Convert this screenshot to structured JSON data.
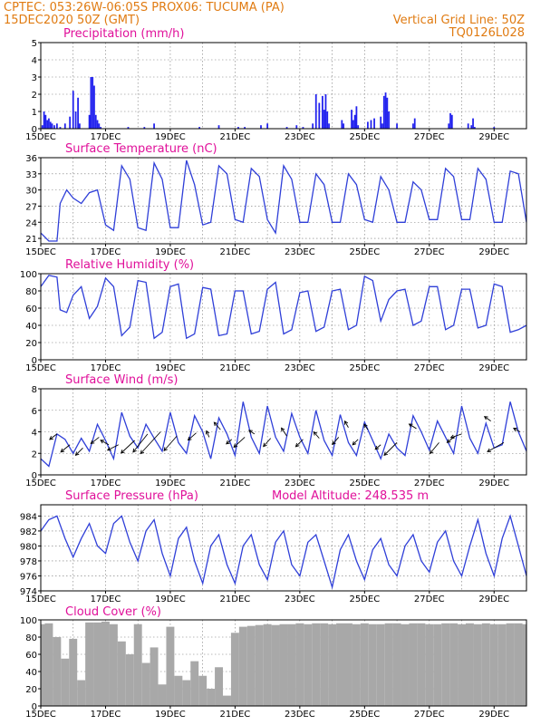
{
  "header": {
    "line1": "CPTEC:   053:26W-06:05S   PROX06: TUCUMA (PA)",
    "line2": "15DEC2020 50Z (GMT)",
    "right1": "Vertical Grid Line: 50Z",
    "right2": "TQ0126L028"
  },
  "colors": {
    "line": "#2f3fd8",
    "bars": "#2222ee",
    "cloud": "#a8a8a8",
    "title": "#e0109a",
    "header": "#e07b12"
  },
  "chart_data": [
    {
      "type": "bar",
      "title": "Precipitation (mm/h)",
      "ylim": [
        0,
        5
      ],
      "yticks": [
        "0",
        "1",
        "2",
        "3",
        "4",
        "5"
      ],
      "xticks": [
        "15DEC",
        "17DEC",
        "19DEC",
        "21DEC",
        "23DEC",
        "25DEC",
        "27DEC",
        "29DEC"
      ],
      "xlim_days": [
        0,
        15
      ],
      "x_days": [
        0.05,
        0.1,
        0.15,
        0.2,
        0.25,
        0.3,
        0.35,
        0.42,
        0.5,
        0.6,
        0.75,
        0.9,
        1.0,
        1.08,
        1.15,
        1.2,
        1.5,
        1.55,
        1.6,
        1.65,
        1.7,
        1.75,
        1.8,
        1.85,
        2.7,
        3.2,
        3.5,
        4.9,
        5.5,
        6.1,
        6.3,
        6.8,
        7.0,
        7.6,
        7.9,
        8.1,
        8.4,
        8.5,
        8.6,
        8.7,
        8.75,
        8.8,
        8.85,
        8.9,
        9.3,
        9.35,
        9.6,
        9.65,
        9.7,
        9.75,
        9.8,
        10.1,
        10.2,
        10.3,
        10.5,
        10.55,
        10.6,
        10.65,
        10.7,
        10.75,
        11.0,
        11.5,
        11.55,
        12.6,
        12.65,
        12.7,
        13.2,
        13.3,
        13.35,
        13.4,
        14.0
      ],
      "values": [
        0.2,
        1.0,
        0.8,
        0.5,
        0.6,
        0.4,
        0.3,
        0.2,
        0.3,
        0.1,
        0.3,
        0.7,
        2.2,
        1.0,
        1.8,
        0.3,
        0.8,
        3.0,
        3.0,
        2.5,
        0.8,
        0.5,
        0.3,
        0.1,
        0.1,
        0.1,
        0.3,
        0.1,
        0.2,
        0.1,
        0.1,
        0.2,
        0.3,
        0.1,
        0.2,
        0.1,
        0.3,
        2.0,
        1.5,
        1.9,
        1.1,
        2.0,
        1.0,
        0.3,
        0.5,
        0.3,
        1.1,
        0.5,
        0.8,
        1.3,
        0.2,
        0.4,
        0.5,
        0.6,
        0.7,
        0.3,
        1.9,
        2.1,
        1.8,
        1.0,
        0.3,
        0.3,
        0.6,
        0.3,
        0.9,
        0.8,
        0.3,
        0.2,
        0.6,
        0.1,
        0.1
      ]
    },
    {
      "type": "line",
      "title": "Surface Temperature (nC)",
      "ylim": [
        20,
        36
      ],
      "yticks": [
        "21",
        "24",
        "27",
        "30",
        "33",
        "36"
      ],
      "ytick_values": [
        21,
        24,
        27,
        30,
        33,
        36
      ],
      "xticks": [
        "15DEC",
        "17DEC",
        "19DEC",
        "21DEC",
        "23DEC",
        "25DEC",
        "27DEC",
        "29DEC"
      ],
      "xlim_days": [
        0,
        15
      ],
      "x_days": [
        0,
        0.25,
        0.5,
        0.6,
        0.8,
        1.0,
        1.25,
        1.5,
        1.75,
        2.0,
        2.25,
        2.5,
        2.75,
        3.0,
        3.25,
        3.5,
        3.75,
        4.0,
        4.25,
        4.5,
        4.75,
        5.0,
        5.25,
        5.5,
        5.75,
        6.0,
        6.25,
        6.5,
        6.75,
        7.0,
        7.25,
        7.5,
        7.75,
        8.0,
        8.25,
        8.5,
        8.75,
        9.0,
        9.25,
        9.5,
        9.75,
        10.0,
        10.25,
        10.5,
        10.75,
        11.0,
        11.25,
        11.5,
        11.75,
        12.0,
        12.25,
        12.5,
        12.75,
        13.0,
        13.25,
        13.5,
        13.75,
        14.0,
        14.25,
        14.5,
        14.75,
        15.0
      ],
      "values": [
        22,
        20.5,
        20.5,
        27.5,
        30,
        28.5,
        27.5,
        29.5,
        30,
        23.5,
        22.5,
        34.5,
        32,
        23,
        22.5,
        35,
        32,
        23,
        23,
        35.5,
        31,
        23.5,
        24,
        34.5,
        33,
        24.5,
        24,
        34,
        32.5,
        24.5,
        22,
        34.5,
        32,
        24,
        24,
        33,
        31,
        24,
        24,
        33,
        31,
        24.5,
        24,
        32.5,
        30,
        24,
        24,
        31.5,
        30,
        24.5,
        24.5,
        34,
        32.5,
        24.5,
        24.5,
        34,
        32,
        24,
        24,
        33.5,
        33,
        24
      ]
    },
    {
      "type": "line",
      "title": "Relative Humidity (%)",
      "ylim": [
        0,
        100
      ],
      "yticks": [
        "0",
        "20",
        "40",
        "60",
        "80",
        "100"
      ],
      "ytick_values": [
        0,
        20,
        40,
        60,
        80,
        100
      ],
      "xticks": [
        "15DEC",
        "17DEC",
        "19DEC",
        "21DEC",
        "23DEC",
        "25DEC",
        "27DEC",
        "29DEC"
      ],
      "xlim_days": [
        0,
        15
      ],
      "x_days": [
        0,
        0.25,
        0.5,
        0.6,
        0.8,
        1.0,
        1.25,
        1.5,
        1.75,
        2.0,
        2.25,
        2.5,
        2.75,
        3.0,
        3.25,
        3.5,
        3.75,
        4.0,
        4.25,
        4.5,
        4.75,
        5.0,
        5.25,
        5.5,
        5.75,
        6.0,
        6.25,
        6.5,
        6.75,
        7.0,
        7.25,
        7.5,
        7.75,
        8.0,
        8.25,
        8.5,
        8.75,
        9.0,
        9.25,
        9.5,
        9.75,
        10.0,
        10.25,
        10.5,
        10.75,
        11.0,
        11.25,
        11.5,
        11.75,
        12.0,
        12.25,
        12.5,
        12.75,
        13.0,
        13.25,
        13.5,
        13.75,
        14.0,
        14.25,
        14.5,
        14.75,
        15.0
      ],
      "values": [
        85,
        98,
        96,
        58,
        55,
        75,
        85,
        48,
        62,
        95,
        85,
        28,
        38,
        92,
        90,
        25,
        32,
        85,
        88,
        25,
        30,
        84,
        82,
        28,
        30,
        80,
        80,
        30,
        33,
        82,
        90,
        30,
        35,
        78,
        80,
        33,
        38,
        80,
        82,
        35,
        40,
        97,
        92,
        45,
        70,
        80,
        82,
        40,
        45,
        85,
        85,
        35,
        40,
        82,
        82,
        37,
        40,
        88,
        85,
        32,
        35,
        40
      ]
    },
    {
      "type": "line",
      "title": "Surface Wind (m/s)",
      "ylim": [
        0,
        8
      ],
      "yticks": [
        "0",
        "2",
        "4",
        "6",
        "8"
      ],
      "ytick_values": [
        0,
        2,
        4,
        6,
        8
      ],
      "xticks": [
        "15DEC",
        "17DEC",
        "19DEC",
        "21DEC",
        "23DEC",
        "25DEC",
        "27DEC",
        "29DEC"
      ],
      "xlim_days": [
        0,
        15
      ],
      "x_days": [
        0,
        0.25,
        0.5,
        0.75,
        1.0,
        1.25,
        1.5,
        1.75,
        2.0,
        2.25,
        2.5,
        2.75,
        3.0,
        3.25,
        3.5,
        3.75,
        4.0,
        4.25,
        4.5,
        4.75,
        5.0,
        5.25,
        5.5,
        5.75,
        6.0,
        6.25,
        6.5,
        6.75,
        7.0,
        7.25,
        7.5,
        7.75,
        8.0,
        8.25,
        8.5,
        8.75,
        9.0,
        9.25,
        9.5,
        9.75,
        10.0,
        10.25,
        10.5,
        10.75,
        11.0,
        11.25,
        11.5,
        11.75,
        12.0,
        12.25,
        12.5,
        12.75,
        13.0,
        13.25,
        13.5,
        13.75,
        14.0,
        14.25,
        14.5,
        14.75,
        15.0
      ],
      "values": [
        1.5,
        0.8,
        3.8,
        3.3,
        2.0,
        3.4,
        2.2,
        4.7,
        3.2,
        1.5,
        5.8,
        3.6,
        2.5,
        4.7,
        3.4,
        2.2,
        5.8,
        3.0,
        2.0,
        5.5,
        4.0,
        1.5,
        5.3,
        3.8,
        1.8,
        6.8,
        3.5,
        2.0,
        6.4,
        3.5,
        2.2,
        5.7,
        3.5,
        2.0,
        6.0,
        3.2,
        1.8,
        5.6,
        3.0,
        1.8,
        4.9,
        3.2,
        1.5,
        3.8,
        2.5,
        1.8,
        5.5,
        4.0,
        2.3,
        5.0,
        3.5,
        2.0,
        6.4,
        3.4,
        2.0,
        4.8,
        2.5,
        2.8,
        6.8,
        4.0,
        2.2
      ],
      "vectors": [
        {
          "x": 0.5,
          "y": 3.8,
          "dx": -8,
          "dy": 6
        },
        {
          "x": 0.9,
          "y": 2.8,
          "dx": -10,
          "dy": 8
        },
        {
          "x": 1.3,
          "y": 2.5,
          "dx": -8,
          "dy": 8
        },
        {
          "x": 1.8,
          "y": 3.5,
          "dx": -9,
          "dy": 7
        },
        {
          "x": 2.1,
          "y": 2.8,
          "dx": -9,
          "dy": -5
        },
        {
          "x": 2.4,
          "y": 2.8,
          "dx": -12,
          "dy": 6
        },
        {
          "x": 2.9,
          "y": 3.2,
          "dx": -15,
          "dy": 14
        },
        {
          "x": 3.3,
          "y": 3.8,
          "dx": -16,
          "dy": 20
        },
        {
          "x": 3.7,
          "y": 4.0,
          "dx": -22,
          "dy": 24
        },
        {
          "x": 4.2,
          "y": 3.6,
          "dx": -14,
          "dy": 16
        },
        {
          "x": 4.8,
          "y": 3.9,
          "dx": -9,
          "dy": 8
        },
        {
          "x": 5.2,
          "y": 3.5,
          "dx": -3,
          "dy": -7
        },
        {
          "x": 5.55,
          "y": 4.2,
          "dx": -7,
          "dy": -8
        },
        {
          "x": 5.9,
          "y": 3.3,
          "dx": -6,
          "dy": 5
        },
        {
          "x": 6.3,
          "y": 3.5,
          "dx": -12,
          "dy": 11
        },
        {
          "x": 6.6,
          "y": 3.8,
          "dx": -6,
          "dy": -4
        },
        {
          "x": 7.1,
          "y": 3.4,
          "dx": -8,
          "dy": 9
        },
        {
          "x": 7.6,
          "y": 3.6,
          "dx": -6,
          "dy": -9
        },
        {
          "x": 8.1,
          "y": 3.3,
          "dx": -8,
          "dy": 8
        },
        {
          "x": 8.6,
          "y": 3.4,
          "dx": -6,
          "dy": -7
        },
        {
          "x": 9.2,
          "y": 3.5,
          "dx": -7,
          "dy": 8
        },
        {
          "x": 9.5,
          "y": 4.4,
          "dx": -4,
          "dy": -7
        },
        {
          "x": 9.8,
          "y": 3.3,
          "dx": -6,
          "dy": 6
        },
        {
          "x": 10.1,
          "y": 4.2,
          "dx": -4,
          "dy": -6
        },
        {
          "x": 10.5,
          "y": 2.8,
          "dx": -6,
          "dy": 5
        },
        {
          "x": 11.0,
          "y": 3.0,
          "dx": -14,
          "dy": 14
        },
        {
          "x": 11.6,
          "y": 4.3,
          "dx": -8,
          "dy": -5
        },
        {
          "x": 12.3,
          "y": 3.0,
          "dx": -10,
          "dy": 12
        },
        {
          "x": 12.8,
          "y": 3.6,
          "dx": -9,
          "dy": 7
        },
        {
          "x": 13.0,
          "y": 3.8,
          "dx": -12,
          "dy": 4
        },
        {
          "x": 13.9,
          "y": 5.0,
          "dx": -7,
          "dy": -5
        },
        {
          "x": 14.3,
          "y": 3.0,
          "dx": -18,
          "dy": 10
        },
        {
          "x": 14.8,
          "y": 4.0,
          "dx": -7,
          "dy": -4
        }
      ]
    },
    {
      "type": "line",
      "title": "Surface Pressure (hPa)",
      "annotation": "Model Altitude: 248.535 m",
      "ylim": [
        974,
        985.5
      ],
      "yticks": [
        "974",
        "976",
        "978",
        "980",
        "982",
        "984"
      ],
      "ytick_values": [
        974,
        976,
        978,
        980,
        982,
        984
      ],
      "xticks": [
        "15DEC",
        "17DEC",
        "19DEC",
        "21DEC",
        "23DEC",
        "25DEC",
        "27DEC",
        "29DEC"
      ],
      "xlim_days": [
        0,
        15
      ],
      "x_days": [
        0,
        0.25,
        0.5,
        0.75,
        1.0,
        1.25,
        1.5,
        1.75,
        2.0,
        2.25,
        2.5,
        2.75,
        3.0,
        3.25,
        3.5,
        3.75,
        4.0,
        4.25,
        4.5,
        4.75,
        5.0,
        5.25,
        5.5,
        5.75,
        6.0,
        6.25,
        6.5,
        6.75,
        7.0,
        7.25,
        7.5,
        7.75,
        8.0,
        8.25,
        8.5,
        8.75,
        9.0,
        9.25,
        9.5,
        9.75,
        10.0,
        10.25,
        10.5,
        10.75,
        11.0,
        11.25,
        11.5,
        11.75,
        12.0,
        12.25,
        12.5,
        12.75,
        13.0,
        13.25,
        13.5,
        13.75,
        14.0,
        14.25,
        14.5,
        14.75,
        15.0
      ],
      "values": [
        982,
        983.5,
        984,
        981,
        978.5,
        981,
        983,
        980,
        979,
        983,
        984,
        980.5,
        978,
        982,
        983.5,
        979,
        976,
        981,
        982.5,
        978,
        975,
        980,
        981.5,
        977.5,
        975,
        980,
        981.5,
        977.5,
        975.5,
        980.5,
        982,
        977.5,
        976,
        980.5,
        981.5,
        978,
        974.5,
        979.5,
        981.5,
        978,
        975.5,
        979.5,
        981,
        977.5,
        976,
        980,
        981.5,
        978,
        976.5,
        980.5,
        982,
        978,
        976,
        980,
        983.5,
        979,
        976,
        981,
        984,
        980,
        976
      ]
    },
    {
      "type": "bar",
      "title": "Cloud Cover (%)",
      "ylim": [
        0,
        100
      ],
      "yticks": [
        "0",
        "20",
        "40",
        "60",
        "80",
        "100"
      ],
      "ytick_values": [
        0,
        20,
        40,
        60,
        80,
        100
      ],
      "xticks": [
        "15DEC",
        "17DEC",
        "19DEC",
        "21DEC",
        "23DEC",
        "25DEC",
        "27DEC",
        "29DEC"
      ],
      "xlim_days": [
        0,
        15
      ],
      "x_days": [
        0,
        0.25,
        0.5,
        0.75,
        1.0,
        1.25,
        1.5,
        1.75,
        2.0,
        2.25,
        2.5,
        2.75,
        3.0,
        3.25,
        3.5,
        3.75,
        4.0,
        4.25,
        4.5,
        4.75,
        5.0,
        5.25,
        5.5,
        5.75,
        6.0,
        6.25,
        6.5,
        6.75,
        7.0,
        7.25,
        7.5,
        7.75,
        8.0,
        8.25,
        8.5,
        8.75,
        9.0,
        9.25,
        9.5,
        9.75,
        10.0,
        10.25,
        10.5,
        10.75,
        11.0,
        11.25,
        11.5,
        11.75,
        12.0,
        12.25,
        12.5,
        12.75,
        13.0,
        13.25,
        13.5,
        13.75,
        14.0,
        14.25,
        14.5,
        14.75,
        15.0
      ],
      "values": [
        95,
        96,
        80,
        55,
        78,
        30,
        97,
        97,
        98,
        95,
        75,
        60,
        95,
        50,
        68,
        25,
        92,
        35,
        30,
        52,
        35,
        20,
        45,
        12,
        85,
        92,
        93,
        94,
        95,
        94,
        95,
        95,
        96,
        95,
        96,
        96,
        95,
        96,
        96,
        95,
        96,
        95,
        95,
        96,
        96,
        95,
        96,
        96,
        95,
        95,
        96,
        96,
        95,
        96,
        95,
        96,
        95,
        95,
        96,
        96,
        95
      ]
    }
  ]
}
